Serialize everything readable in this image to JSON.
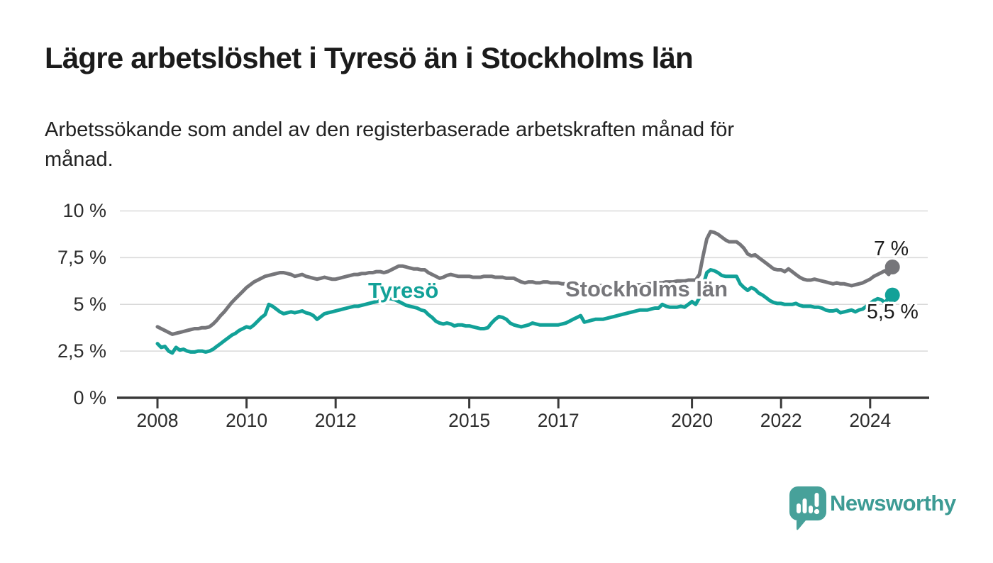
{
  "header": {
    "title": "Lägre arbetslöshet i Tyresö än i Stockholms län",
    "subtitle": "Arbetssökande som andel av den registerbaserade arbetskraften månad för månad.",
    "subtitle_lines": [
      "Arbetssökande som andel av den registerbaserade arbetskraften månad för",
      "månad."
    ]
  },
  "branding": {
    "logo_text": "Newsworthy",
    "logo_color": "#3d9b94",
    "logo_icon": "bar-chart-speech-bubble-icon",
    "logo_icon_color": "#47a19a"
  },
  "chart_data": {
    "type": "line",
    "title": "Lägre arbetslöshet i Tyresö än i Stockholms län",
    "subtitle": "Arbetssökande som andel av den registerbaserade arbetskraften månad för månad.",
    "unit": "%",
    "x_interval": "monthly",
    "x_range": {
      "start": "2008-01",
      "end": "2024-07"
    },
    "x_tick_years": [
      2008,
      2010,
      2012,
      2015,
      2017,
      2020,
      2022,
      2024
    ],
    "x_tick_labels": [
      "2008",
      "2010",
      "2012",
      "2015",
      "2017",
      "2020",
      "2022",
      "2024"
    ],
    "y_ticks": [
      10,
      7.5,
      5,
      2.5,
      0
    ],
    "y_tick_labels": [
      "10 %",
      "7,5 %",
      "5 %",
      "2,5 %",
      "0 %"
    ],
    "ylim": [
      0,
      10
    ],
    "grid": "horizontal",
    "legend": "inline-labels",
    "series": [
      {
        "name": "Tyresö",
        "color": "#12a198",
        "end_label": "5,5 %",
        "end_value": 5.5,
        "values": [
          2.9,
          2.7,
          2.75,
          2.5,
          2.4,
          2.7,
          2.55,
          2.6,
          2.5,
          2.45,
          2.45,
          2.5,
          2.5,
          2.45,
          2.5,
          2.6,
          2.75,
          2.9,
          3.05,
          3.2,
          3.35,
          3.45,
          3.6,
          3.7,
          3.8,
          3.75,
          3.9,
          4.1,
          4.3,
          4.45,
          5.0,
          4.9,
          4.75,
          4.6,
          4.5,
          4.55,
          4.6,
          4.55,
          4.6,
          4.65,
          4.55,
          4.5,
          4.4,
          4.2,
          4.35,
          4.5,
          4.55,
          4.6,
          4.65,
          4.7,
          4.75,
          4.8,
          4.85,
          4.9,
          4.9,
          4.95,
          5.0,
          5.05,
          5.1,
          5.15,
          5.2,
          5.25,
          5.3,
          5.3,
          5.25,
          5.15,
          5.05,
          4.95,
          4.9,
          4.85,
          4.8,
          4.7,
          4.65,
          4.45,
          4.3,
          4.1,
          4.0,
          3.95,
          4.0,
          3.95,
          3.85,
          3.9,
          3.9,
          3.85,
          3.85,
          3.8,
          3.75,
          3.7,
          3.7,
          3.75,
          4.0,
          4.2,
          4.35,
          4.3,
          4.2,
          4.0,
          3.9,
          3.85,
          3.8,
          3.85,
          3.9,
          4.0,
          3.95,
          3.9,
          3.9,
          3.9,
          3.9,
          3.9,
          3.9,
          3.95,
          4.0,
          4.1,
          4.2,
          4.3,
          4.4,
          4.05,
          4.1,
          4.15,
          4.2,
          4.2,
          4.2,
          4.25,
          4.3,
          4.35,
          4.4,
          4.45,
          4.5,
          4.55,
          4.6,
          4.65,
          4.7,
          4.7,
          4.7,
          4.75,
          4.8,
          4.8,
          5.0,
          4.9,
          4.85,
          4.85,
          4.85,
          4.9,
          4.85,
          5.0,
          5.15,
          5.0,
          5.35,
          6.0,
          6.7,
          6.85,
          6.8,
          6.7,
          6.55,
          6.5,
          6.5,
          6.5,
          6.5,
          6.1,
          5.9,
          5.75,
          5.9,
          5.8,
          5.6,
          5.5,
          5.35,
          5.2,
          5.1,
          5.05,
          5.05,
          5.0,
          5.0,
          5.0,
          5.05,
          4.95,
          4.9,
          4.9,
          4.9,
          4.85,
          4.85,
          4.8,
          4.7,
          4.65,
          4.65,
          4.7,
          4.55,
          4.6,
          4.65,
          4.7,
          4.6,
          4.7,
          4.75,
          4.9,
          5.05,
          5.2,
          5.3,
          5.25,
          5.1,
          5.35,
          5.5
        ]
      },
      {
        "name": "Stockholms län",
        "color": "#76767a",
        "end_label": "7 %",
        "end_value": 7,
        "values": [
          3.8,
          3.7,
          3.6,
          3.5,
          3.4,
          3.45,
          3.5,
          3.55,
          3.6,
          3.65,
          3.7,
          3.7,
          3.75,
          3.75,
          3.8,
          3.95,
          4.15,
          4.4,
          4.6,
          4.85,
          5.1,
          5.3,
          5.5,
          5.7,
          5.9,
          6.05,
          6.2,
          6.3,
          6.4,
          6.5,
          6.55,
          6.6,
          6.65,
          6.7,
          6.7,
          6.65,
          6.6,
          6.5,
          6.55,
          6.6,
          6.5,
          6.45,
          6.4,
          6.35,
          6.4,
          6.45,
          6.4,
          6.35,
          6.35,
          6.4,
          6.45,
          6.5,
          6.55,
          6.6,
          6.6,
          6.65,
          6.65,
          6.7,
          6.7,
          6.75,
          6.75,
          6.7,
          6.75,
          6.85,
          6.95,
          7.05,
          7.05,
          7.0,
          6.95,
          6.9,
          6.9,
          6.85,
          6.85,
          6.7,
          6.6,
          6.5,
          6.4,
          6.45,
          6.55,
          6.6,
          6.55,
          6.5,
          6.5,
          6.5,
          6.5,
          6.45,
          6.45,
          6.45,
          6.5,
          6.5,
          6.5,
          6.45,
          6.45,
          6.45,
          6.4,
          6.4,
          6.4,
          6.3,
          6.2,
          6.15,
          6.2,
          6.2,
          6.15,
          6.15,
          6.2,
          6.2,
          6.15,
          6.15,
          6.15,
          6.1,
          6.1,
          6.1,
          6.05,
          6.05,
          6.05,
          6.0,
          6.0,
          6.0,
          6.0,
          6.0,
          6.0,
          5.95,
          5.95,
          5.95,
          5.95,
          6.0,
          6.0,
          6.0,
          6.0,
          6.05,
          6.05,
          6.05,
          6.1,
          6.1,
          6.1,
          6.15,
          6.15,
          6.2,
          6.2,
          6.2,
          6.25,
          6.25,
          6.25,
          6.3,
          6.3,
          6.3,
          6.6,
          7.6,
          8.5,
          8.9,
          8.85,
          8.75,
          8.6,
          8.45,
          8.35,
          8.35,
          8.35,
          8.2,
          8.0,
          7.7,
          7.6,
          7.65,
          7.5,
          7.35,
          7.2,
          7.05,
          6.9,
          6.85,
          6.85,
          6.75,
          6.9,
          6.75,
          6.6,
          6.45,
          6.35,
          6.3,
          6.3,
          6.35,
          6.3,
          6.25,
          6.2,
          6.15,
          6.1,
          6.15,
          6.1,
          6.1,
          6.05,
          6.0,
          6.05,
          6.1,
          6.15,
          6.25,
          6.35,
          6.5,
          6.6,
          6.7,
          6.8,
          6.6,
          7.0
        ]
      }
    ]
  }
}
